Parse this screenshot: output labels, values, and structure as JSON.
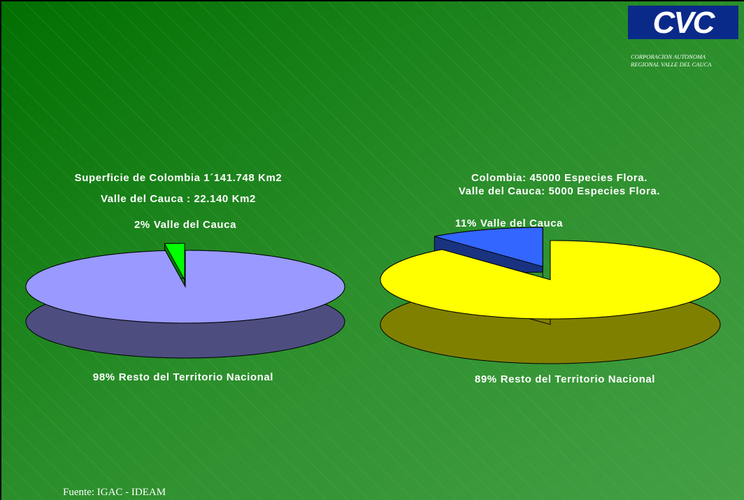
{
  "logo": {
    "text": "CVC",
    "subtitle_lines": [
      "CORPORACION AUTONOMA",
      "REGIONAL VALLE DEL CAUCA"
    ]
  },
  "chart_data": [
    {
      "type": "pie",
      "title_lines": [
        "Superficie de Colombia 1´141.748 Km2",
        "Valle del Cauca : 22.140 Km2"
      ],
      "categories": [
        "Valle del Cauca",
        "Resto del Territorio Nacional"
      ],
      "values": [
        2,
        98
      ],
      "value_labels": [
        "2%",
        "98%"
      ],
      "colors": [
        "#00ff00",
        "#9999ff"
      ]
    },
    {
      "type": "pie",
      "title_lines": [
        "Colombia: 45000 Especies Flora.",
        "Valle del Cauca: 5000 Especies Flora."
      ],
      "categories": [
        "Valle del Cauca",
        "Resto del Territorio Nacional"
      ],
      "values": [
        11,
        89
      ],
      "value_labels": [
        "11%",
        "89%"
      ],
      "colors": [
        "#3366ff",
        "#ffff00"
      ]
    }
  ],
  "source": "Fuente: IGAC - IDEAM"
}
